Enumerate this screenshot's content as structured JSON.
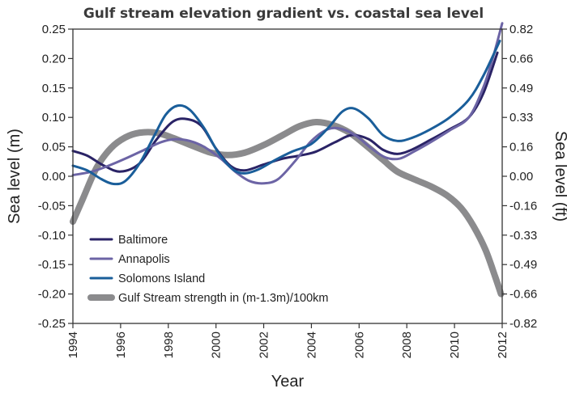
{
  "chart_data": {
    "type": "line",
    "title": "Gulf stream elevation gradient vs. coastal sea level",
    "xlabel": "Year",
    "ylabel_left": "Sea level (m)",
    "ylabel_right": "Sea level (ft)",
    "xlim": [
      1994,
      2012
    ],
    "ylim": [
      -0.25,
      0.25
    ],
    "ylim_right": [
      -0.82,
      0.82
    ],
    "x_ticks": [
      "1994",
      "1996",
      "1998",
      "2000",
      "2002",
      "2004",
      "2006",
      "2008",
      "2010",
      "2012"
    ],
    "y_ticks_left": [
      "0.25",
      "0.20",
      "0.15",
      "0.10",
      "0.05",
      "0.00",
      "-0.05",
      "-0.10",
      "-0.15",
      "-0.20",
      "-0.25"
    ],
    "y_ticks_right": [
      "0.82",
      "0.66",
      "0.49",
      "0.33",
      "0.16",
      "0.00",
      "-0.16",
      "-0.33",
      "-0.49",
      "-0.66",
      "-0.82"
    ],
    "grid": false,
    "legend_position": "bottom-left",
    "series": [
      {
        "name": "Baltimore",
        "color": "#2a2366",
        "width": 3,
        "x": [
          1994,
          1994.6,
          1995.3,
          1996,
          1996.8,
          1997.5,
          1998.2,
          1998.8,
          1999.4,
          2000,
          2000.6,
          2001.2,
          2002,
          2002.8,
          2003.5,
          2004.2,
          2005,
          2005.7,
          2006.4,
          2007,
          2007.6,
          2008.2,
          2009,
          2009.8,
          2010.6,
          2011.2,
          2011.8
        ],
        "y": [
          0.043,
          0.035,
          0.018,
          0.008,
          0.022,
          0.062,
          0.093,
          0.097,
          0.085,
          0.047,
          0.018,
          0.01,
          0.02,
          0.03,
          0.035,
          0.042,
          0.058,
          0.07,
          0.063,
          0.045,
          0.038,
          0.045,
          0.062,
          0.08,
          0.1,
          0.14,
          0.21
        ]
      },
      {
        "name": "Annapolis",
        "color": "#6c64a5",
        "width": 3,
        "x": [
          1994,
          1994.8,
          1995.5,
          1996.2,
          1997,
          1997.7,
          1998.3,
          1998.9,
          1999.5,
          2000.2,
          2000.8,
          2001.4,
          2002,
          2002.6,
          2003.3,
          2004,
          2004.7,
          2005.3,
          2005.9,
          2006.5,
          2007.1,
          2007.7,
          2008.3,
          2009,
          2009.8,
          2010.6,
          2011.2,
          2011.6,
          2012
        ],
        "y": [
          0.002,
          0.008,
          0.018,
          0.03,
          0.045,
          0.058,
          0.063,
          0.06,
          0.05,
          0.03,
          0.008,
          -0.008,
          -0.012,
          -0.005,
          0.025,
          0.06,
          0.08,
          0.08,
          0.068,
          0.048,
          0.032,
          0.03,
          0.042,
          0.058,
          0.078,
          0.1,
          0.15,
          0.2,
          0.26
        ]
      },
      {
        "name": "Solomons Island",
        "color": "#1a5e9a",
        "width": 3,
        "x": [
          1994,
          1994.6,
          1995.2,
          1995.7,
          1996.2,
          1996.8,
          1997.4,
          1997.9,
          1998.4,
          1998.9,
          1999.5,
          2000.1,
          2000.7,
          2001.2,
          2001.8,
          2002.5,
          2003.2,
          2004,
          2004.7,
          2005.3,
          2005.8,
          2006.4,
          2007,
          2007.6,
          2008.2,
          2009,
          2009.8,
          2010.6,
          2011.2,
          2011.9
        ],
        "y": [
          0.018,
          0.01,
          -0.005,
          -0.013,
          -0.008,
          0.022,
          0.068,
          0.105,
          0.12,
          0.113,
          0.082,
          0.04,
          0.012,
          0.005,
          0.012,
          0.028,
          0.042,
          0.055,
          0.082,
          0.11,
          0.115,
          0.098,
          0.07,
          0.06,
          0.065,
          0.08,
          0.1,
          0.13,
          0.17,
          0.23
        ]
      },
      {
        "name": "Gulf Stream strength in (m-1.3m)/100km",
        "color": "#8b8b8d",
        "width": 8,
        "x": [
          1994,
          1994.4,
          1995,
          1995.6,
          1996.2,
          1996.8,
          1997.5,
          1998.2,
          1999,
          1999.8,
          2000.5,
          2001.2,
          2002,
          2002.8,
          2003.5,
          2004.2,
          2004.9,
          2005.6,
          2006.3,
          2007,
          2007.6,
          2008.3,
          2009,
          2009.7,
          2010.3,
          2010.8,
          2011.3,
          2011.7,
          2011.95
        ],
        "y": [
          -0.077,
          -0.04,
          0.015,
          0.048,
          0.066,
          0.074,
          0.074,
          0.065,
          0.052,
          0.04,
          0.036,
          0.04,
          0.053,
          0.07,
          0.085,
          0.092,
          0.087,
          0.074,
          0.052,
          0.028,
          0.008,
          -0.005,
          -0.017,
          -0.033,
          -0.055,
          -0.085,
          -0.125,
          -0.17,
          -0.2
        ]
      }
    ]
  }
}
